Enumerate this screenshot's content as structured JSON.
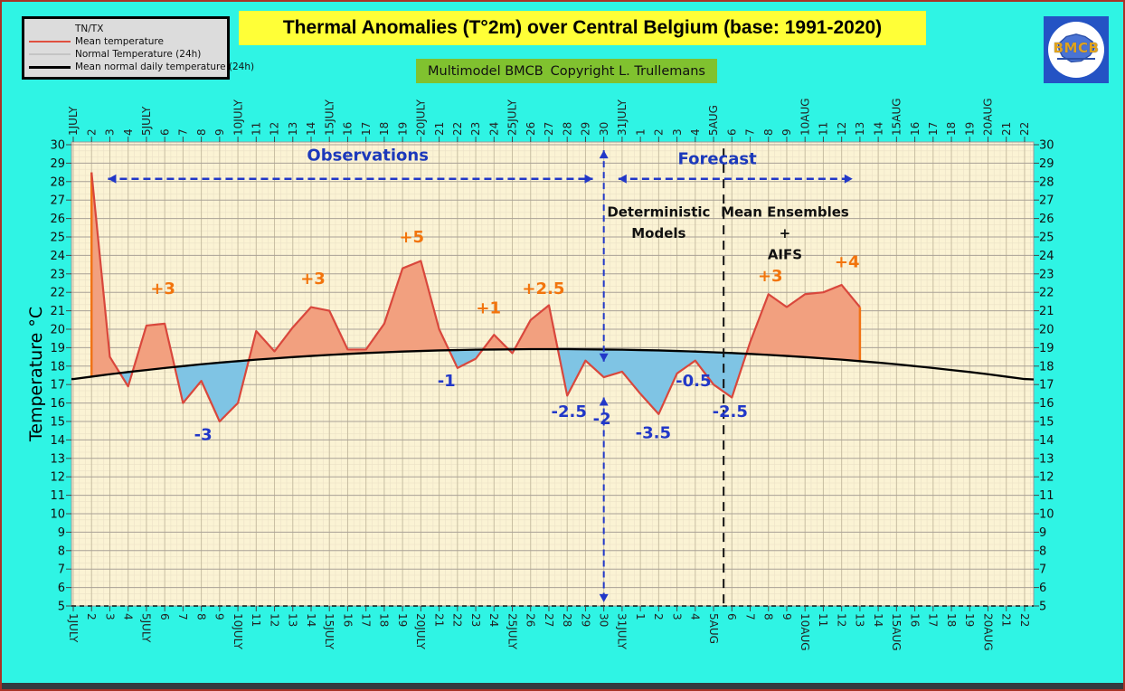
{
  "window": {
    "bg": "#2FF4E4",
    "frame_color": "#A93226",
    "bottom_bar_color": "#333B3F"
  },
  "legend": {
    "bg": "#DCDCDC",
    "items": [
      {
        "label": "TN/TX",
        "swatch": "none",
        "line_width": 0
      },
      {
        "label": "Mean temperature",
        "swatch": "#E0503F",
        "line_width": 2
      },
      {
        "label": "Normal Temperature (24h)",
        "swatch": "#C4C4C4",
        "line_width": 2
      },
      {
        "label": "Mean normal daily temperature (24h)",
        "swatch": "#000000",
        "line_width": 3
      }
    ]
  },
  "title": {
    "text": "Thermal Anomalies (T°2m) over Central Belgium (base: 1991-2020)",
    "bg": "#FFFF37",
    "color": "#000000"
  },
  "subtitle": {
    "left": "Multimodel BMCB",
    "right": "Copyright L. Trullemans",
    "bg": "#80C22F",
    "color": "#111111"
  },
  "logo": {
    "text": "BMCB",
    "bg": "#2453C4",
    "circle": "#FFFFFF",
    "map_color": "#4A74D4",
    "accent": "#E0A31C"
  },
  "chart_data": {
    "type": "line",
    "title": "Thermal Anomalies (T°2m) over Central Belgium (base: 1991-2020)",
    "ylabel": "Temperature °C",
    "ylim": [
      5,
      30
    ],
    "grid": {
      "minor": "#EBE1C6",
      "day": "#C8BEA2",
      "degree": "#A9A197",
      "bg": "#FBF3D4",
      "axis_dash": "#111111"
    },
    "x_labels": [
      "1JULY",
      "2",
      "3",
      "4",
      "5JULY",
      "6",
      "7",
      "8",
      "9",
      "10JULY",
      "11",
      "12",
      "13",
      "14",
      "15JULY",
      "16",
      "17",
      "18",
      "19",
      "20JULY",
      "21",
      "22",
      "23",
      "24",
      "25JULY",
      "26",
      "27",
      "28",
      "29",
      "30",
      "31JULY",
      "1",
      "2",
      "3",
      "4",
      "5AUG",
      "6",
      "7",
      "8",
      "9",
      "10AUG",
      "11",
      "12",
      "13",
      "14",
      "15AUG",
      "16",
      "17",
      "18",
      "19",
      "20AUG",
      "21",
      "22"
    ],
    "series": [
      {
        "name": "Mean temperature",
        "color": "#D9473C",
        "fill_above": "#F2A07F",
        "fill_below": "#7FC4E4",
        "edge_color": "#F07316",
        "start_index": 1,
        "values": [
          28.5,
          18.5,
          16.9,
          20.2,
          20.3,
          16.0,
          17.2,
          15.0,
          16.0,
          19.9,
          18.8,
          20.1,
          21.2,
          21.0,
          18.9,
          18.9,
          20.3,
          23.3,
          23.7,
          20.0,
          17.9,
          18.4,
          19.7,
          18.7,
          20.5,
          21.3,
          16.4,
          18.3,
          17.4,
          17.7,
          16.5,
          15.4,
          17.6,
          18.3,
          17.0,
          16.3,
          19.3,
          21.9,
          21.2,
          21.9,
          22.0,
          22.4,
          21.2
        ]
      },
      {
        "name": "Mean normal daily temperature (24h)",
        "color": "#000000",
        "start_index": 0,
        "values": [
          17.3,
          17.43,
          17.56,
          17.68,
          17.79,
          17.9,
          18.0,
          18.1,
          18.19,
          18.27,
          18.35,
          18.42,
          18.49,
          18.55,
          18.61,
          18.66,
          18.71,
          18.75,
          18.79,
          18.82,
          18.85,
          18.87,
          18.89,
          18.9,
          18.91,
          18.92,
          18.92,
          18.92,
          18.91,
          18.9,
          18.89,
          18.87,
          18.85,
          18.82,
          18.79,
          18.75,
          18.71,
          18.66,
          18.61,
          18.55,
          18.49,
          18.42,
          18.35,
          18.27,
          18.19,
          18.1,
          18.0,
          17.9,
          17.79,
          17.68,
          17.56,
          17.43,
          17.3
        ]
      }
    ],
    "annotations": [
      {
        "day": 4.9,
        "temp": 21.9,
        "text": "+3",
        "color": "#F2740C"
      },
      {
        "day": 7.1,
        "temp": 14.0,
        "text": "-3",
        "color": "#2238C8"
      },
      {
        "day": 13.1,
        "temp": 22.45,
        "text": "+3",
        "color": "#F2740C"
      },
      {
        "day": 18.5,
        "temp": 24.7,
        "text": "+5",
        "color": "#F2740C"
      },
      {
        "day": 20.4,
        "temp": 16.9,
        "text": "-1",
        "color": "#2238C8"
      },
      {
        "day": 22.7,
        "temp": 20.85,
        "text": "+1",
        "color": "#F2740C"
      },
      {
        "day": 25.7,
        "temp": 21.9,
        "text": "+2.5",
        "color": "#F2740C"
      },
      {
        "day": 27.1,
        "temp": 15.25,
        "text": "-2.5",
        "color": "#2238C8"
      },
      {
        "day": 28.9,
        "temp": 14.85,
        "text": "-2",
        "color": "#2238C8"
      },
      {
        "day": 31.7,
        "temp": 14.1,
        "text": "-3.5",
        "color": "#2238C8"
      },
      {
        "day": 33.9,
        "temp": 16.9,
        "text": "-0.5",
        "color": "#2238C8"
      },
      {
        "day": 35.9,
        "temp": 15.25,
        "text": "-2.5",
        "color": "#2238C8"
      },
      {
        "day": 38.1,
        "temp": 22.6,
        "text": "+3",
        "color": "#F2740C"
      },
      {
        "day": 42.3,
        "temp": 23.35,
        "text": "+4",
        "color": "#F2740C"
      }
    ],
    "zone_labels": [
      {
        "text": "Observations",
        "day": 16.1,
        "temp": 29.15,
        "color": "#1C39BB",
        "size": 18
      },
      {
        "text": "Forecast",
        "day": 35.2,
        "temp": 28.95,
        "color": "#1C39BB",
        "size": 18
      },
      {
        "text": "Deterministic",
        "day": 32.0,
        "temp": 26.1,
        "color": "#111111",
        "size": 15
      },
      {
        "text": "Models",
        "day": 32.0,
        "temp": 24.95,
        "color": "#111111",
        "size": 15
      },
      {
        "text": "Mean Ensembles",
        "day": 38.9,
        "temp": 26.1,
        "color": "#111111",
        "size": 15
      },
      {
        "text": "+",
        "day": 38.9,
        "temp": 24.95,
        "color": "#111111",
        "size": 15
      },
      {
        "text": "AIFS",
        "day": 38.9,
        "temp": 23.8,
        "color": "#111111",
        "size": 15
      }
    ],
    "span_arrows": [
      {
        "name": "observations-arrow",
        "from_day": 1.9,
        "to_day": 28.4,
        "temp": 28.15,
        "color": "#2238C8"
      },
      {
        "name": "forecast-arrow",
        "from_day": 29.8,
        "to_day": 42.6,
        "temp": 28.15,
        "color": "#2238C8"
      }
    ],
    "dividers": [
      {
        "name": "forecast-divider",
        "day": 29.0,
        "color": "#2238C8",
        "arrows": true,
        "segments": [
          [
            29.7,
            18.25
          ],
          [
            16.3,
            5.2
          ]
        ]
      },
      {
        "name": "model-divider",
        "day": 35.55,
        "color": "#111111",
        "arrows": false,
        "segments": [
          [
            29.8,
            4.9
          ]
        ]
      }
    ]
  }
}
